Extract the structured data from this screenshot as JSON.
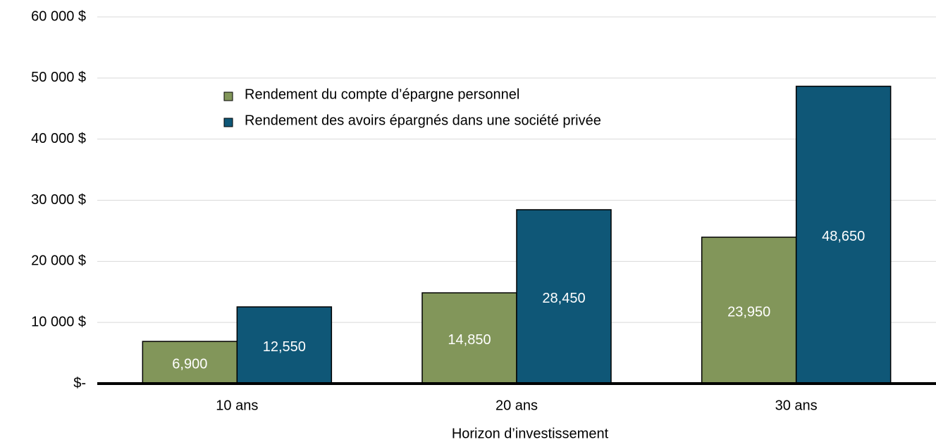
{
  "chart_data": {
    "type": "bar",
    "x_label": "Horizon d’investissement",
    "categories": [
      "10 ans",
      "20 ans",
      "30 ans"
    ],
    "series": [
      {
        "name": "Rendement du compte d’épargne personnel",
        "color": "#82965a",
        "values": [
          6900,
          14850,
          23950
        ],
        "value_labels": [
          "6,900",
          "14,850",
          "23,950"
        ]
      },
      {
        "name": "Rendement des avoirs épargnés dans une société privée",
        "color": "#0f5777",
        "values": [
          12550,
          28450,
          48650
        ],
        "value_labels": [
          "12,550",
          "28,450",
          "48,650"
        ]
      }
    ],
    "ylim": [
      0,
      60000
    ],
    "yticks": [
      {
        "value": 0,
        "label": "$-"
      },
      {
        "value": 10000,
        "label": "10 000 $"
      },
      {
        "value": 20000,
        "label": "20 000 $"
      },
      {
        "value": 30000,
        "label": "30 000 $"
      },
      {
        "value": 40000,
        "label": "40 000 $"
      },
      {
        "value": 50000,
        "label": "50 000 $"
      },
      {
        "value": 60000,
        "label": "60 000 $"
      }
    ],
    "grid": true,
    "legend": "top-left"
  }
}
